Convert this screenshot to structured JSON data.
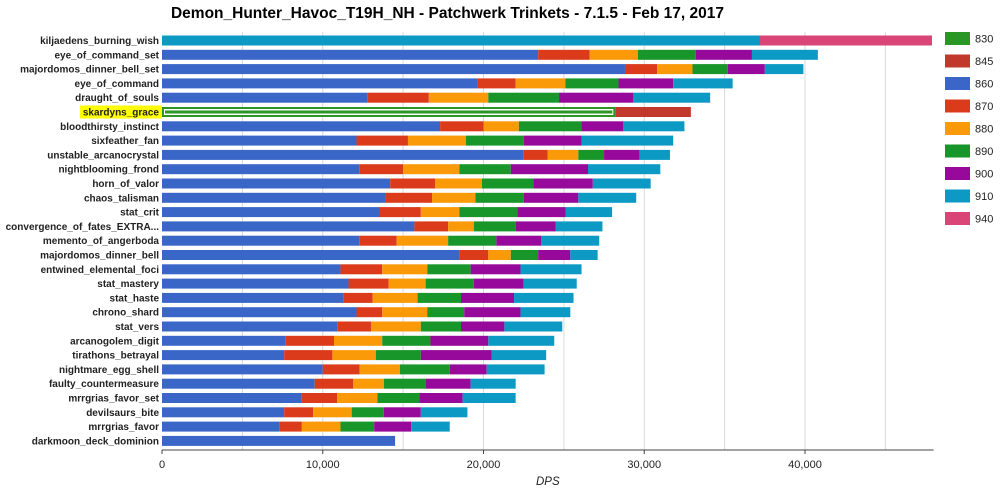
{
  "title": "Demon_Hunter_Havoc_T19H_NH - Patchwerk Trinkets - 7.1.5 - Feb 17, 2017",
  "colors": {
    "830": "#2a9625",
    "845": "#c0392b",
    "860": "#3a67c7",
    "870": "#db3a1b",
    "880": "#fb9a08",
    "890": "#18962a",
    "900": "#96099a",
    "910": "#0c9ac5",
    "940": "#da4577",
    "highlight": "#ffff00",
    "grid": "#d9d9d9"
  },
  "chart_data": {
    "type": "bar",
    "orientation": "horizontal",
    "stacked": true,
    "title": "Demon_Hunter_Havoc_T19H_NH - Patchwerk Trinkets - 7.1.5 - Feb 17, 2017",
    "xlabel": "DPS",
    "ylabel": "",
    "xlim": [
      0,
      48000
    ],
    "xticks": [
      "0",
      "10,000",
      "20,000",
      "30,000",
      "40,000"
    ],
    "grid": true,
    "legend_position": "right",
    "legend": [
      "830",
      "845",
      "860",
      "870",
      "880",
      "890",
      "900",
      "910",
      "940"
    ],
    "highlighted_category": "skardyns_grace",
    "categories": [
      "kiljaedens_burning_wish",
      "eye_of_command_set",
      "majordomos_dinner_bell_set",
      "eye_of_command",
      "draught_of_souls",
      "skardyns_grace",
      "bloodthirsty_instinct",
      "sixfeather_fan",
      "unstable_arcanocrystal",
      "nightblooming_frond",
      "horn_of_valor",
      "chaos_talisman",
      "stat_crit",
      "convergence_of_fates_EXTRA...",
      "memento_of_angerboda",
      "majordomos_dinner_bell",
      "entwined_elemental_foci",
      "stat_mastery",
      "stat_haste",
      "chrono_shard",
      "stat_vers",
      "arcanogolem_digit",
      "tirathons_betrayal",
      "nightmare_egg_shell",
      "faulty_countermeasure",
      "mrrgrias_favor_set",
      "devilsaurs_bite",
      "mrrgrias_favor",
      "darkmoon_deck_dominion"
    ],
    "bars": [
      [
        [
          "910",
          37200
        ],
        [
          "940",
          47900
        ]
      ],
      [
        [
          "860",
          23400
        ],
        [
          "870",
          26600
        ],
        [
          "880",
          29600
        ],
        [
          "890",
          33200
        ],
        [
          "900",
          36700
        ],
        [
          "910",
          40800
        ]
      ],
      [
        [
          "860",
          28800
        ],
        [
          "870",
          30800
        ],
        [
          "880",
          33000
        ],
        [
          "890",
          35200
        ],
        [
          "900",
          37500
        ],
        [
          "910",
          39900
        ]
      ],
      [
        [
          "860",
          19600
        ],
        [
          "870",
          22000
        ],
        [
          "880",
          25100
        ],
        [
          "890",
          28400
        ],
        [
          "900",
          31800
        ],
        [
          "910",
          35500
        ]
      ],
      [
        [
          "860",
          12800
        ],
        [
          "870",
          16600
        ],
        [
          "880",
          20300
        ],
        [
          "890",
          24700
        ],
        [
          "900",
          29300
        ],
        [
          "910",
          34100
        ]
      ],
      [
        [
          "830",
          28200
        ],
        [
          "845",
          32900
        ]
      ],
      [
        [
          "860",
          17300
        ],
        [
          "870",
          20000
        ],
        [
          "880",
          22200
        ],
        [
          "890",
          26100
        ],
        [
          "900",
          28700
        ],
        [
          "910",
          32500
        ]
      ],
      [
        [
          "860",
          12100
        ],
        [
          "870",
          15300
        ],
        [
          "880",
          18900
        ],
        [
          "890",
          22500
        ],
        [
          "900",
          26100
        ],
        [
          "910",
          31800
        ]
      ],
      [
        [
          "860",
          22500
        ],
        [
          "870",
          24000
        ],
        [
          "880",
          25900
        ],
        [
          "890",
          27500
        ],
        [
          "900",
          29700
        ],
        [
          "910",
          31600
        ]
      ],
      [
        [
          "860",
          12300
        ],
        [
          "870",
          15000
        ],
        [
          "880",
          18500
        ],
        [
          "890",
          21700
        ],
        [
          "900",
          26500
        ],
        [
          "910",
          31000
        ]
      ],
      [
        [
          "860",
          14200
        ],
        [
          "870",
          17000
        ],
        [
          "880",
          19900
        ],
        [
          "890",
          23100
        ],
        [
          "900",
          26800
        ],
        [
          "910",
          30400
        ]
      ],
      [
        [
          "860",
          13900
        ],
        [
          "870",
          16800
        ],
        [
          "880",
          19500
        ],
        [
          "890",
          22500
        ],
        [
          "900",
          25900
        ],
        [
          "910",
          29500
        ]
      ],
      [
        [
          "860",
          13500
        ],
        [
          "870",
          16100
        ],
        [
          "880",
          18500
        ],
        [
          "890",
          22100
        ],
        [
          "900",
          25100
        ],
        [
          "910",
          28000
        ]
      ],
      [
        [
          "860",
          15700
        ],
        [
          "870",
          17800
        ],
        [
          "880",
          19400
        ],
        [
          "890",
          22000
        ],
        [
          "900",
          24500
        ],
        [
          "910",
          27400
        ]
      ],
      [
        [
          "860",
          12300
        ],
        [
          "870",
          14600
        ],
        [
          "880",
          17800
        ],
        [
          "890",
          20800
        ],
        [
          "900",
          23600
        ],
        [
          "910",
          27200
        ]
      ],
      [
        [
          "860",
          18500
        ],
        [
          "870",
          20300
        ],
        [
          "880",
          21700
        ],
        [
          "890",
          23400
        ],
        [
          "900",
          25400
        ],
        [
          "910",
          27100
        ]
      ],
      [
        [
          "860",
          11100
        ],
        [
          "870",
          13700
        ],
        [
          "880",
          16500
        ],
        [
          "890",
          19200
        ],
        [
          "900",
          22300
        ],
        [
          "910",
          26100
        ]
      ],
      [
        [
          "860",
          11600
        ],
        [
          "870",
          14100
        ],
        [
          "880",
          16400
        ],
        [
          "890",
          19400
        ],
        [
          "900",
          22500
        ],
        [
          "910",
          25800
        ]
      ],
      [
        [
          "860",
          11300
        ],
        [
          "870",
          13100
        ],
        [
          "880",
          15900
        ],
        [
          "890",
          18600
        ],
        [
          "900",
          21900
        ],
        [
          "910",
          25600
        ]
      ],
      [
        [
          "860",
          12100
        ],
        [
          "870",
          13700
        ],
        [
          "880",
          16500
        ],
        [
          "890",
          18800
        ],
        [
          "900",
          22300
        ],
        [
          "910",
          25400
        ]
      ],
      [
        [
          "860",
          10900
        ],
        [
          "870",
          13000
        ],
        [
          "880",
          16100
        ],
        [
          "890",
          18600
        ],
        [
          "900",
          21300
        ],
        [
          "910",
          24900
        ]
      ],
      [
        [
          "860",
          7700
        ],
        [
          "870",
          10700
        ],
        [
          "880",
          13700
        ],
        [
          "890",
          16700
        ],
        [
          "900",
          20300
        ],
        [
          "910",
          24400
        ]
      ],
      [
        [
          "860",
          7600
        ],
        [
          "870",
          10600
        ],
        [
          "880",
          13300
        ],
        [
          "890",
          16100
        ],
        [
          "900",
          20500
        ],
        [
          "910",
          23900
        ]
      ],
      [
        [
          "860",
          10000
        ],
        [
          "870",
          12300
        ],
        [
          "880",
          14800
        ],
        [
          "890",
          17900
        ],
        [
          "900",
          20200
        ],
        [
          "910",
          23800
        ]
      ],
      [
        [
          "860",
          9500
        ],
        [
          "870",
          11900
        ],
        [
          "880",
          13800
        ],
        [
          "890",
          16400
        ],
        [
          "900",
          19200
        ],
        [
          "910",
          22000
        ]
      ],
      [
        [
          "860",
          8700
        ],
        [
          "870",
          10900
        ],
        [
          "880",
          13400
        ],
        [
          "890",
          16000
        ],
        [
          "900",
          18700
        ],
        [
          "910",
          22000
        ]
      ],
      [
        [
          "860",
          7600
        ],
        [
          "870",
          9400
        ],
        [
          "880",
          11800
        ],
        [
          "890",
          13800
        ],
        [
          "900",
          16100
        ],
        [
          "910",
          19000
        ]
      ],
      [
        [
          "860",
          7300
        ],
        [
          "870",
          8700
        ],
        [
          "880",
          11100
        ],
        [
          "890",
          13200
        ],
        [
          "900",
          15500
        ],
        [
          "910",
          17900
        ]
      ],
      [
        [
          "860",
          14500
        ]
      ]
    ]
  }
}
